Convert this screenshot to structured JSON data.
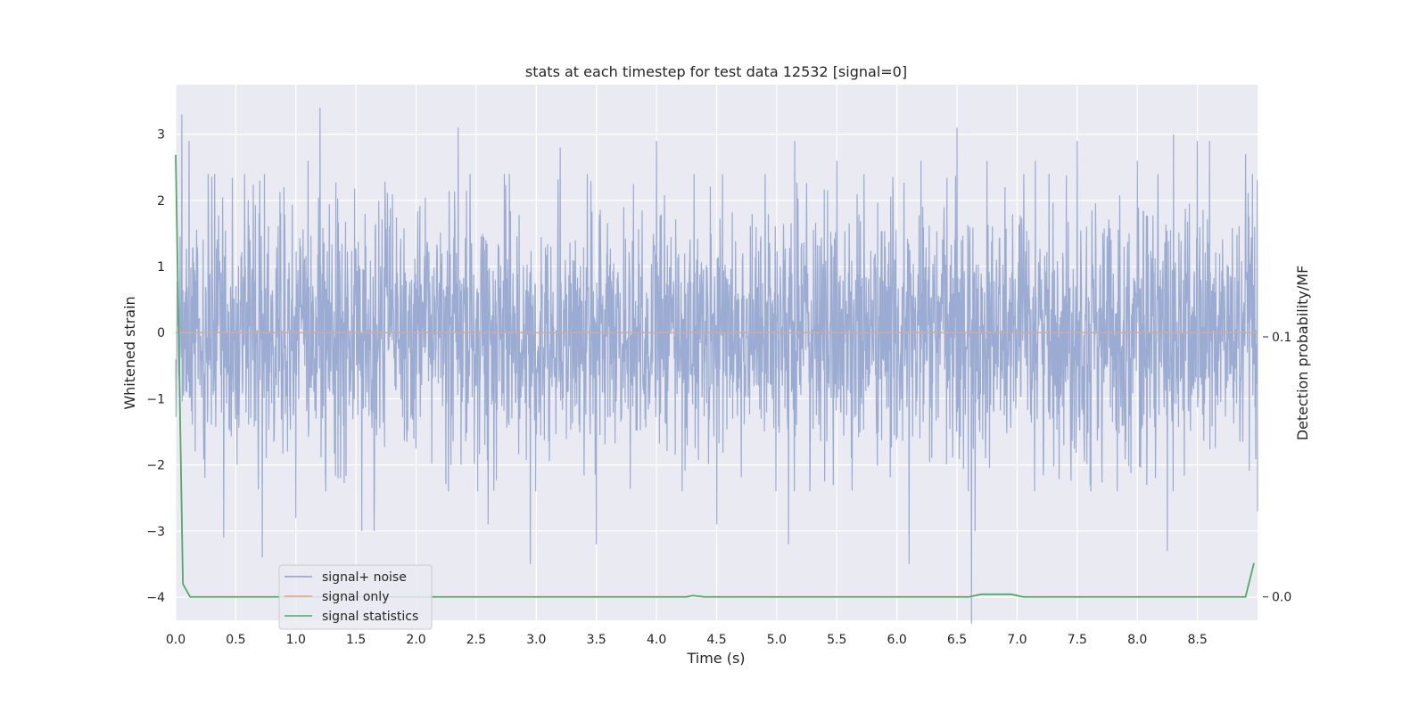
{
  "chart_data": {
    "type": "line",
    "title": "stats at each timestep for test data 12532 [signal=0]",
    "xlabel": "Time (s)",
    "ylabel": "Whitened strain",
    "y2label": "Detection probability/MF",
    "xlim": [
      0.0,
      9.0
    ],
    "ylim": [
      -4.35,
      3.75
    ],
    "y2lim": [
      -0.009,
      0.197
    ],
    "xticks": [
      "0.0",
      "0.5",
      "1.0",
      "1.5",
      "2.0",
      "2.5",
      "3.0",
      "3.5",
      "4.0",
      "4.5",
      "5.0",
      "5.5",
      "6.0",
      "6.5",
      "7.0",
      "7.5",
      "8.0",
      "8.5"
    ],
    "yticks": [
      "3",
      "2",
      "1",
      "0",
      "−1",
      "−2",
      "−3",
      "−4"
    ],
    "y2ticks": [
      "0.1",
      "0.0"
    ],
    "grid": true,
    "legend_position": "lower-left",
    "noise": {
      "name": "signal+ noise",
      "color": "#8da0cb",
      "std": 1.0,
      "peaks_high": [
        [
          0.05,
          3.3
        ],
        [
          0.11,
          2.9
        ],
        [
          0.7,
          2.3
        ],
        [
          0.9,
          2.2
        ],
        [
          1.1,
          2.6
        ],
        [
          1.2,
          3.4
        ],
        [
          1.55,
          2.6
        ],
        [
          2.35,
          3.1
        ],
        [
          2.95,
          3.3
        ],
        [
          3.2,
          2.8
        ],
        [
          3.5,
          2.8
        ],
        [
          4.0,
          2.9
        ],
        [
          5.15,
          2.9
        ],
        [
          5.5,
          2.6
        ],
        [
          6.2,
          2.6
        ],
        [
          6.5,
          3.1
        ],
        [
          6.62,
          3.3
        ],
        [
          6.75,
          2.6
        ],
        [
          7.15,
          2.6
        ],
        [
          7.5,
          2.9
        ],
        [
          8.0,
          2.6
        ],
        [
          8.3,
          3.0
        ],
        [
          8.5,
          2.9
        ],
        [
          8.6,
          2.9
        ],
        [
          8.9,
          2.7
        ]
      ],
      "peaks_low": [
        [
          0.4,
          -3.1
        ],
        [
          0.72,
          -3.4
        ],
        [
          1.0,
          -2.8
        ],
        [
          1.55,
          -3.0
        ],
        [
          1.65,
          -3.0
        ],
        [
          2.6,
          -2.9
        ],
        [
          2.95,
          -3.5
        ],
        [
          3.5,
          -3.2
        ],
        [
          4.5,
          -2.9
        ],
        [
          5.1,
          -3.2
        ],
        [
          6.1,
          -3.5
        ],
        [
          6.62,
          -4.4
        ],
        [
          6.65,
          -3.0
        ],
        [
          8.25,
          -3.3
        ],
        [
          9.0,
          -2.7
        ]
      ]
    },
    "series": [
      {
        "name": "signal only",
        "color": "#e5a585",
        "y": 0.0
      },
      {
        "name": "signal statistics",
        "color": "#55a868",
        "axis": "right",
        "x": [
          0.0,
          0.06,
          0.12,
          4.25,
          4.3,
          4.4,
          6.6,
          6.7,
          6.95,
          7.05,
          8.9,
          8.97
        ],
        "y": [
          0.17,
          0.005,
          0.0,
          0.0,
          0.0005,
          0.0,
          0.0,
          0.001,
          0.001,
          0.0,
          0.0,
          0.013
        ]
      }
    ],
    "colors": {
      "plot_bg": "#eaeaf2",
      "grid": "#ffffff"
    }
  }
}
